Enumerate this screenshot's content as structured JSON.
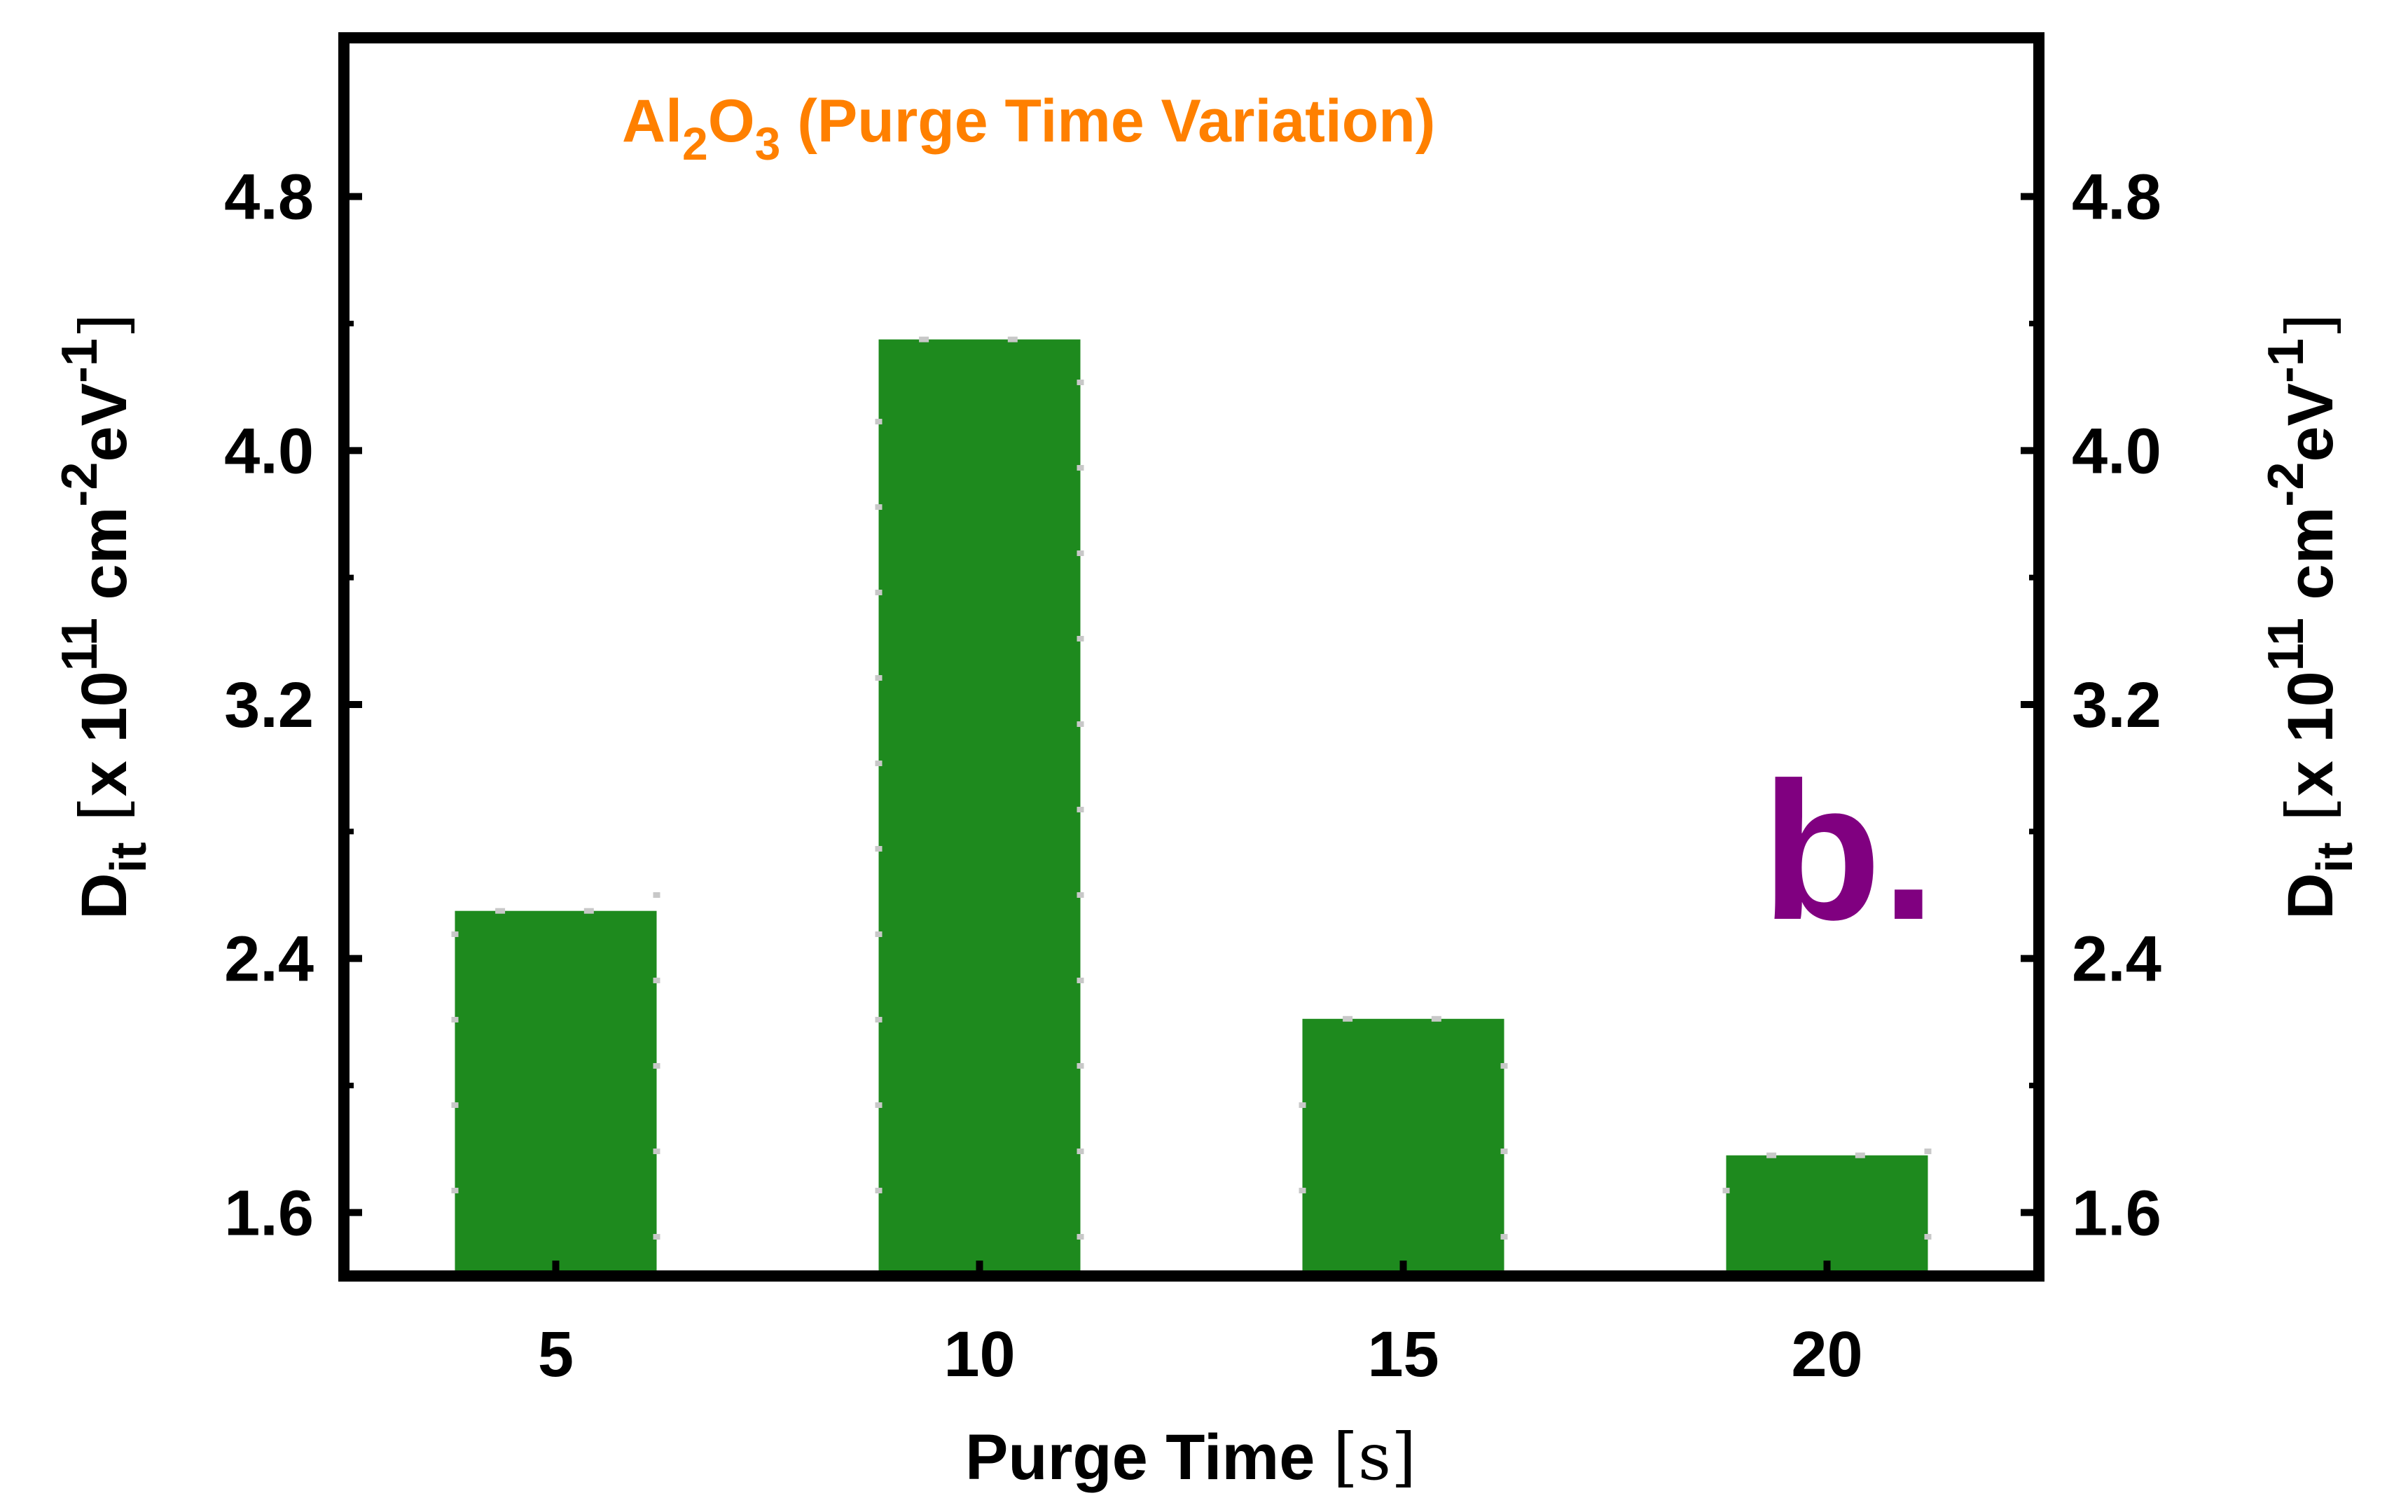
{
  "chart_data": {
    "type": "bar",
    "title": {
      "base1": "Al",
      "sub1": "2",
      "base2": "O",
      "sub2": "3",
      "rest": " (Purge Time Variation)"
    },
    "panel_label": "b.",
    "categories": [
      "5",
      "10",
      "15",
      "20"
    ],
    "values": [
      2.55,
      4.35,
      2.21,
      1.78
    ],
    "xlabel": {
      "text": "Purge Time ",
      "open": "[",
      "unit": "s",
      "close": "]"
    },
    "ylabel": {
      "base": "D",
      "sub": "it",
      "open": " [",
      "mid1": "x 10",
      "sup1": "11",
      "mid2": " cm",
      "sup2": "-2",
      "mid3": "eV",
      "sup3": "-1",
      "close": "]"
    },
    "y_ticks": [
      "1.6",
      "2.4",
      "3.2",
      "4.0",
      "4.8"
    ],
    "ylim": [
      1.4,
      5.3
    ],
    "grid": false,
    "colors": {
      "bar": "#1e8a1e",
      "bar_dots": "#c8c8c8",
      "title": "#ff8000",
      "panel_label": "#800080",
      "axis": "#000000"
    }
  }
}
